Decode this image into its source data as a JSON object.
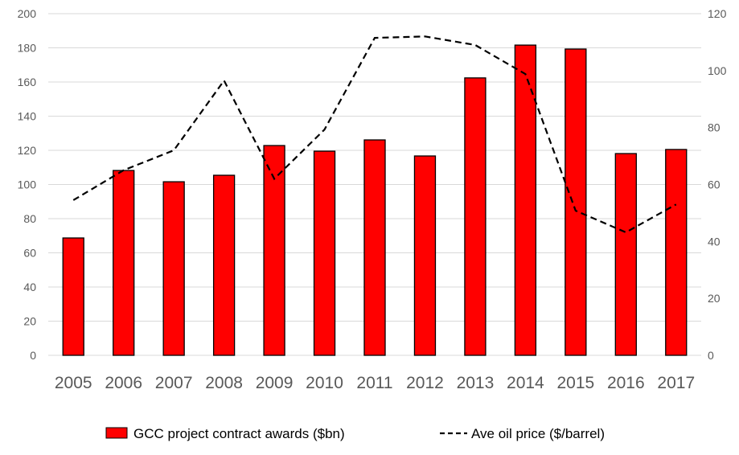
{
  "chart_data": {
    "type": "bar",
    "categories": [
      "2005",
      "2006",
      "2007",
      "2008",
      "2009",
      "2010",
      "2011",
      "2012",
      "2013",
      "2014",
      "2015",
      "2016",
      "2017"
    ],
    "series": [
      {
        "name": "GCC project contract awards ($bn)",
        "type": "bar",
        "axis": "left",
        "color": "#ff0000",
        "values": [
          68.7,
          108.2,
          101.6,
          105.4,
          122.8,
          119.5,
          126.1,
          116.7,
          162.4,
          181.6,
          179.3,
          118.1,
          120.5
        ]
      },
      {
        "name": "Ave oil price ($/barrel)",
        "type": "line",
        "style": "dashed",
        "axis": "right",
        "color": "#000000",
        "values": [
          54.5,
          65,
          72,
          96.5,
          62,
          79.3,
          111.5,
          112,
          109,
          98.8,
          50.8,
          43.2,
          53
        ]
      }
    ],
    "left_axis": {
      "ylim": [
        0,
        200
      ],
      "ticks": [
        "0",
        "20",
        "40",
        "60",
        "80",
        "100",
        "120",
        "140",
        "160",
        "180",
        "200"
      ]
    },
    "right_axis": {
      "ylim": [
        0,
        120
      ],
      "ticks": [
        "0",
        "20",
        "40",
        "60",
        "80",
        "100",
        "120"
      ]
    },
    "grid": true,
    "legend": "bottom",
    "title": "",
    "xlabel": "",
    "ylabel": ""
  }
}
